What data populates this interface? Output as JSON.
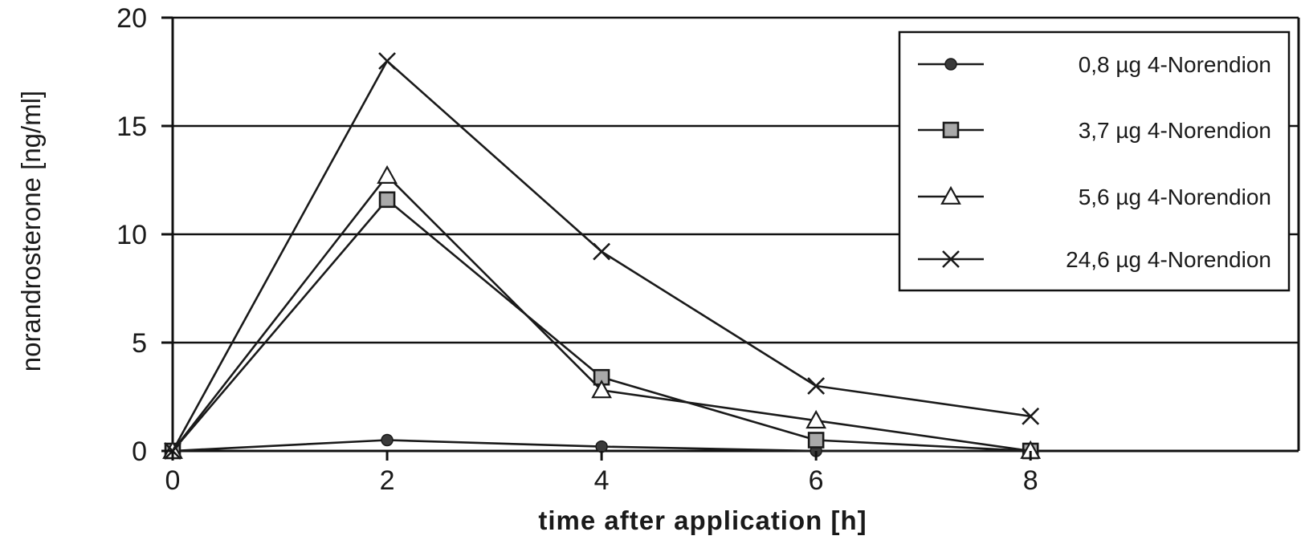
{
  "chart_data": {
    "type": "line",
    "title": "",
    "xlabel": "time after application [h]",
    "ylabel": "norandrosterone [ng/ml]",
    "x": [
      0,
      2,
      4,
      6,
      8
    ],
    "x_ticks": [
      0,
      2,
      4,
      6,
      8
    ],
    "y_ticks": [
      0,
      5,
      10,
      15,
      20
    ],
    "xlim": [
      0,
      10.5
    ],
    "ylim": [
      0,
      20
    ],
    "grid": "horizontal",
    "legend_position": "top-right",
    "series": [
      {
        "name": "0,8 µg 4-Norendion",
        "marker": "diamond",
        "values": [
          0,
          0.5,
          0.2,
          0,
          0
        ]
      },
      {
        "name": "3,7 µg 4-Norendion",
        "marker": "square",
        "values": [
          0,
          11.6,
          3.4,
          0.5,
          0
        ]
      },
      {
        "name": "5,6 µg 4-Norendion",
        "marker": "triangle",
        "values": [
          0,
          12.7,
          2.8,
          1.4,
          0
        ]
      },
      {
        "name": "24,6 µg 4-Norendion",
        "marker": "x",
        "values": [
          0,
          18,
          9.2,
          3,
          1.6
        ]
      }
    ],
    "colors": {
      "line": "#1a1a1a",
      "square_fill": "#a9a9a9",
      "background": "#ffffff"
    }
  }
}
